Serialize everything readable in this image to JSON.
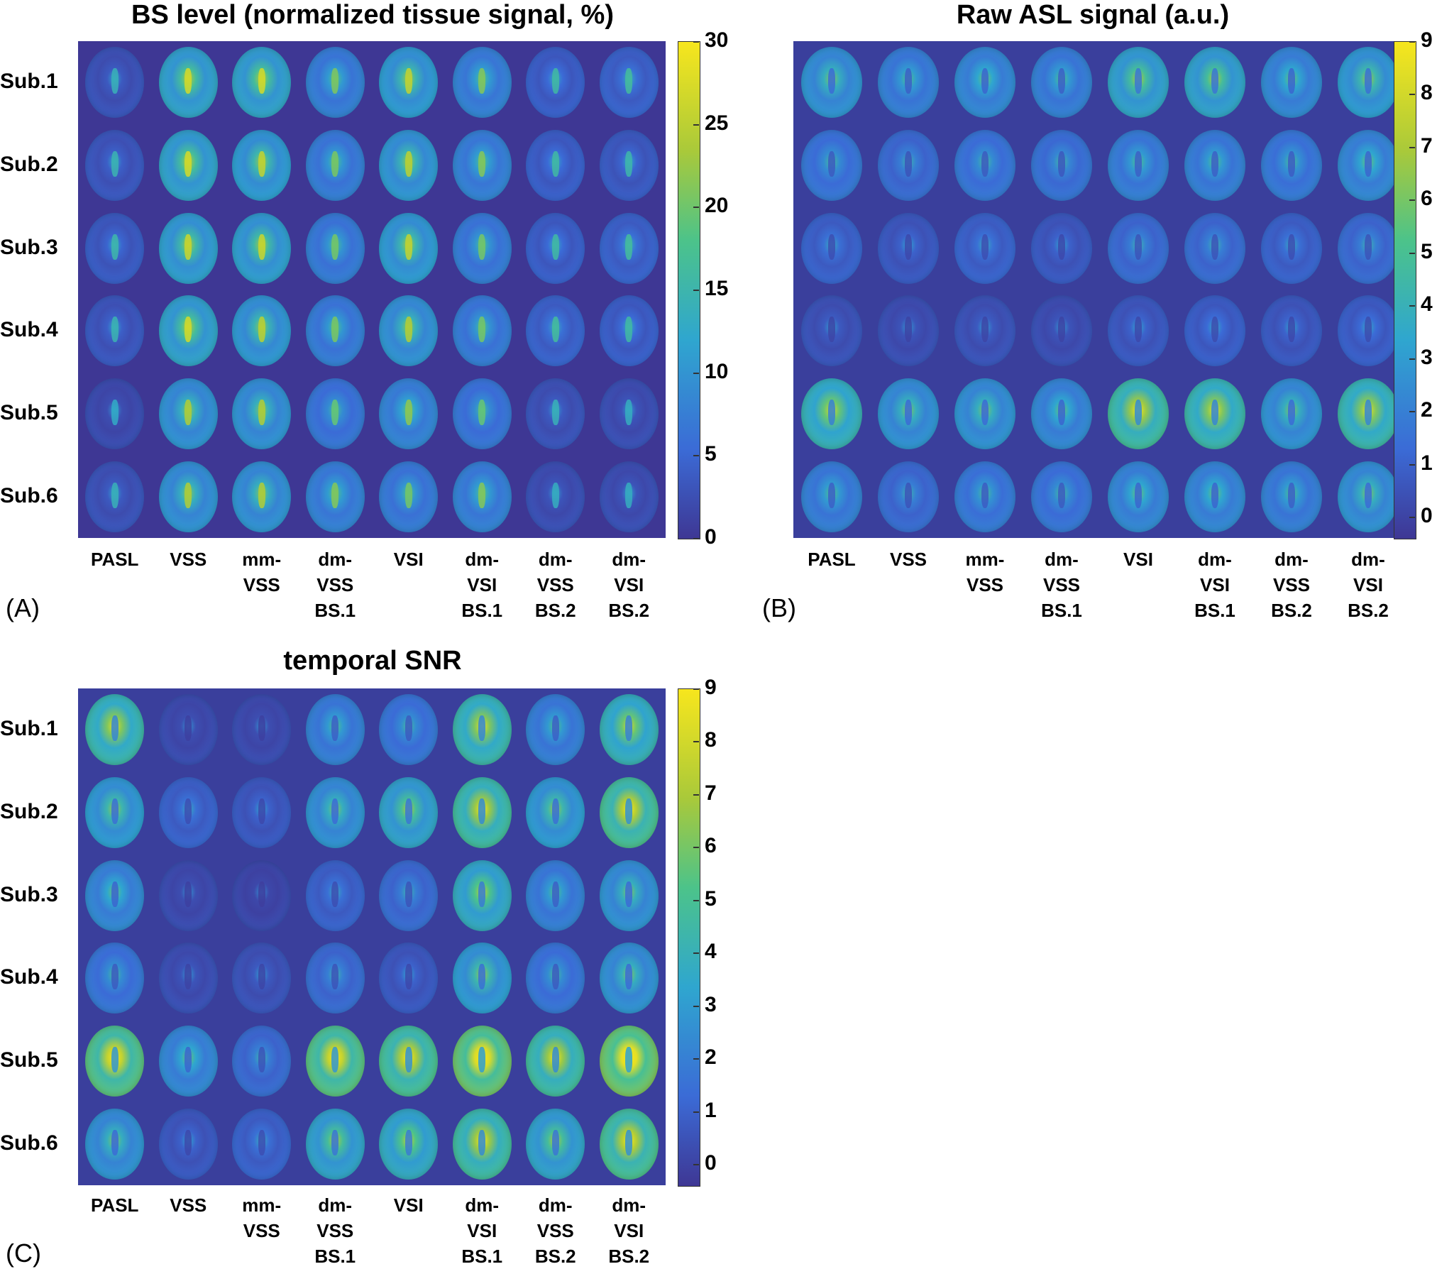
{
  "columns": [
    "PASL",
    "VSS",
    "mm-\nVSS",
    "dm-\nVSS\nBS.1",
    "VSI",
    "dm-\nVSI\nBS.1",
    "dm-\nVSS\nBS.2",
    "dm-\nVSI\nBS.2"
  ],
  "rows": [
    "Sub.1",
    "Sub.2",
    "Sub.3",
    "Sub.4",
    "Sub.5",
    "Sub.6"
  ],
  "colors": {
    "background_low": "#3e3794",
    "mid": "#2fa6cf",
    "high": "#f7e61d"
  },
  "panels": [
    {
      "id": "A",
      "panel_label": "(A)",
      "title": "BS level (normalized tissue signal, %)",
      "colorbar_ticks": [
        "30",
        "25",
        "20",
        "15",
        "10",
        "5",
        "0"
      ],
      "levels": [
        [
          0.12,
          0.55,
          0.55,
          0.35,
          0.5,
          0.36,
          0.18,
          0.2
        ],
        [
          0.14,
          0.55,
          0.5,
          0.34,
          0.48,
          0.36,
          0.18,
          0.16
        ],
        [
          0.16,
          0.52,
          0.52,
          0.33,
          0.5,
          0.33,
          0.18,
          0.2
        ],
        [
          0.14,
          0.55,
          0.48,
          0.34,
          0.46,
          0.33,
          0.2,
          0.18
        ],
        [
          0.08,
          0.45,
          0.45,
          0.3,
          0.38,
          0.3,
          0.12,
          0.1
        ],
        [
          0.12,
          0.45,
          0.45,
          0.36,
          0.33,
          0.36,
          0.1,
          0.1
        ]
      ]
    },
    {
      "id": "B",
      "panel_label": "(B)",
      "title": "Raw ASL signal (a.u.)",
      "colorbar_ticks": [
        "9",
        "8",
        "7",
        "6",
        "5",
        "4",
        "3",
        "2",
        "1",
        "0"
      ],
      "levels": [
        [
          0.45,
          0.35,
          0.4,
          0.35,
          0.55,
          0.55,
          0.4,
          0.5
        ],
        [
          0.3,
          0.25,
          0.3,
          0.28,
          0.35,
          0.35,
          0.32,
          0.4
        ],
        [
          0.2,
          0.15,
          0.2,
          0.15,
          0.25,
          0.25,
          0.2,
          0.25
        ],
        [
          0.12,
          0.1,
          0.12,
          0.1,
          0.15,
          0.18,
          0.15,
          0.18
        ],
        [
          0.65,
          0.45,
          0.45,
          0.4,
          0.75,
          0.7,
          0.45,
          0.7
        ],
        [
          0.35,
          0.25,
          0.32,
          0.3,
          0.4,
          0.4,
          0.35,
          0.45
        ]
      ]
    },
    {
      "id": "C",
      "panel_label": "(C)",
      "title": "temporal SNR",
      "colorbar_ticks": [
        "9",
        "8",
        "7",
        "6",
        "5",
        "4",
        "3",
        "2",
        "1",
        "0"
      ],
      "levels": [
        [
          0.7,
          0.08,
          0.08,
          0.35,
          0.3,
          0.7,
          0.35,
          0.65
        ],
        [
          0.5,
          0.2,
          0.15,
          0.45,
          0.55,
          0.75,
          0.5,
          0.8
        ],
        [
          0.4,
          0.08,
          0.06,
          0.2,
          0.25,
          0.6,
          0.35,
          0.45
        ],
        [
          0.3,
          0.1,
          0.12,
          0.25,
          0.15,
          0.5,
          0.3,
          0.45
        ],
        [
          0.85,
          0.4,
          0.25,
          0.85,
          0.8,
          0.92,
          0.75,
          0.95
        ],
        [
          0.45,
          0.15,
          0.2,
          0.55,
          0.6,
          0.75,
          0.55,
          0.8
        ]
      ]
    }
  ]
}
